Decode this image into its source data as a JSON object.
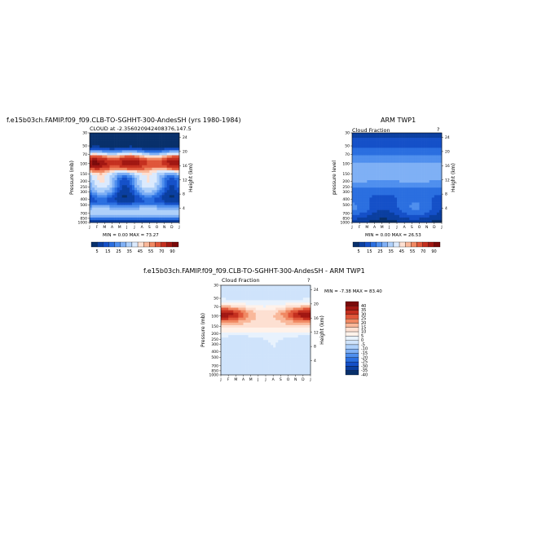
{
  "panels": [
    {
      "title": "f.e15b03ch.FAMIP.f09_f09.CLB-TO-SGHHT-300-AndesSH (yrs 1980-1984)",
      "subtitle": "CLOUD  at  -2.356020942408376,147.5",
      "ylabel": "Pressure (mb)",
      "y2label": "Height (km)",
      "minmax": "MIN =    0.00 MAX =   73.27",
      "corner_mark": ""
    },
    {
      "title": "ARM TWP1",
      "subtitle": "Cloud Fraction",
      "ylabel": "pressure level",
      "y2label": "Height (km)",
      "minmax": "MIN =    0.00 MAX =   26.53",
      "corner_mark": "?"
    },
    {
      "title": "f.e15b03ch.FAMIP.f09_f09.CLB-TO-SGHHT-300-AndesSH - ARM TWP1",
      "subtitle": "Cloud Fraction",
      "ylabel": "Pressure (mb)",
      "y2label": "Height (km)",
      "minmax": "MIN =   -7.38 MAX =   83.40",
      "corner_mark": "?"
    }
  ],
  "chart_data": [
    {
      "type": "heatmap",
      "title": "f.e15b03ch.FAMIP.f09_f09.CLB-TO-SGHHT-300-AndesSH (yrs 1980-1984)",
      "subtitle": "CLOUD  at  -2.356020942408376,147.5",
      "x_ticks": [
        "J",
        "F",
        "M",
        "A",
        "M",
        "J",
        "J",
        "A",
        "S",
        "O",
        "N",
        "D",
        "J"
      ],
      "y_ticks": [
        "30",
        "50",
        "70",
        "100",
        "150",
        "200",
        "250",
        "300",
        "400",
        "500",
        "700",
        "850",
        "1000"
      ],
      "y2_ticks": [
        "24",
        "20",
        "16",
        "12",
        "8",
        "4"
      ],
      "ylabel": "Pressure (mb)",
      "y2label": "Height (km)",
      "colorbar_ticks": [
        "5",
        "15",
        "25",
        "35",
        "45",
        "55",
        "70",
        "90"
      ],
      "min": 0.0,
      "max": 73.27
    },
    {
      "type": "heatmap",
      "title": "ARM TWP1",
      "subtitle": "Cloud Fraction",
      "x_ticks": [
        "J",
        "F",
        "M",
        "A",
        "M",
        "J",
        "J",
        "A",
        "S",
        "O",
        "N",
        "D",
        "J"
      ],
      "y_ticks": [
        "30",
        "50",
        "70",
        "100",
        "150",
        "200",
        "250",
        "300",
        "400",
        "500",
        "700",
        "850",
        "1000"
      ],
      "y2_ticks": [
        "24",
        "20",
        "16",
        "12",
        "8",
        "4"
      ],
      "ylabel": "pressure level",
      "y2label": "Height (km)",
      "colorbar_ticks": [
        "5",
        "15",
        "25",
        "35",
        "45",
        "55",
        "70",
        "90"
      ],
      "min": 0.0,
      "max": 26.53
    },
    {
      "type": "heatmap",
      "title": "f.e15b03ch.FAMIP.f09_f09.CLB-TO-SGHHT-300-AndesSH - ARM TWP1",
      "subtitle": "Cloud Fraction",
      "x_ticks": [
        "J",
        "F",
        "M",
        "A",
        "M",
        "J",
        "J",
        "A",
        "S",
        "O",
        "N",
        "D",
        "J"
      ],
      "y_ticks": [
        "30",
        "50",
        "70",
        "100",
        "150",
        "200",
        "250",
        "300",
        "400",
        "500",
        "700",
        "850",
        "1000"
      ],
      "y2_ticks": [
        "24",
        "20",
        "16",
        "12",
        "8",
        "4"
      ],
      "ylabel": "Pressure (mb)",
      "y2label": "Height (km)",
      "colorbar_ticks": [
        "40",
        "35",
        "30",
        "25",
        "20",
        "15",
        "10",
        "5",
        "0",
        "-5",
        "-10",
        "-15",
        "-20",
        "-25",
        "-30",
        "-35",
        "-40"
      ],
      "min": -7.38,
      "max": 83.4
    }
  ],
  "colors": {
    "seq_scale": [
      "#08306b",
      "#0b3fa0",
      "#1550c8",
      "#2b6fe0",
      "#4f8fee",
      "#7fb0f5",
      "#aed0fa",
      "#dbeafd",
      "#fde0d2",
      "#f9b89a",
      "#f08862",
      "#e0573a",
      "#c42f1f",
      "#a11712",
      "#7a0a0a"
    ],
    "diff_scale": [
      "#7a0a0a",
      "#a11712",
      "#c42f1f",
      "#e0573a",
      "#f08862",
      "#f9b89a",
      "#fde0d2",
      "#fff2ea",
      "#e8f2fd",
      "#cfe3fb",
      "#aed0fa",
      "#7fb0f5",
      "#4f8fee",
      "#2b6fe0",
      "#1550c8",
      "#0b3fa0",
      "#08306b"
    ]
  }
}
